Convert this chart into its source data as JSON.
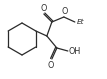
{
  "bg_color": "#ffffff",
  "line_color": "#2a2a2a",
  "text_color": "#2a2a2a",
  "lw": 0.9,
  "figsize": [
    1.07,
    0.79
  ],
  "dpi": 100,
  "xlim": [
    0,
    107
  ],
  "ylim": [
    0,
    79
  ]
}
